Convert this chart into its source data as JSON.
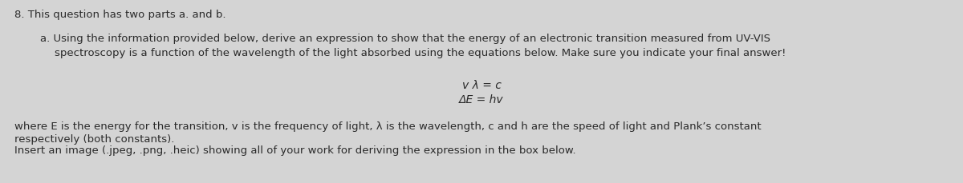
{
  "background_color": "#d4d4d4",
  "title_text": "8. This question has two parts a. and b.",
  "title_fontsize": 9.5,
  "title_fontweight": "normal",
  "line1_text": "a. Using the information provided below, derive an expression to show that the energy of an electronic transition measured from UV-VIS",
  "line2_text": "spectroscopy is a function of the wavelength of the light absorbed using the equations below. Make sure you indicate your final answer!",
  "eq1_text": "v λ = c",
  "eq2_text": "ΔE = hv",
  "eq_fontsize": 10.0,
  "footer1_text": "where E is the energy for the transition, v is the frequency of light, λ is the wavelength, c and h are the speed of light and Plank’s constant",
  "footer2_text": "respectively (both constants).",
  "footer3_text": "Insert an image (.jpeg, .png, .heic) showing all of your work for deriving the expression in the box below.",
  "body_fontsize": 9.5,
  "footer_fontsize": 9.5,
  "text_color": "#2a2a2a"
}
